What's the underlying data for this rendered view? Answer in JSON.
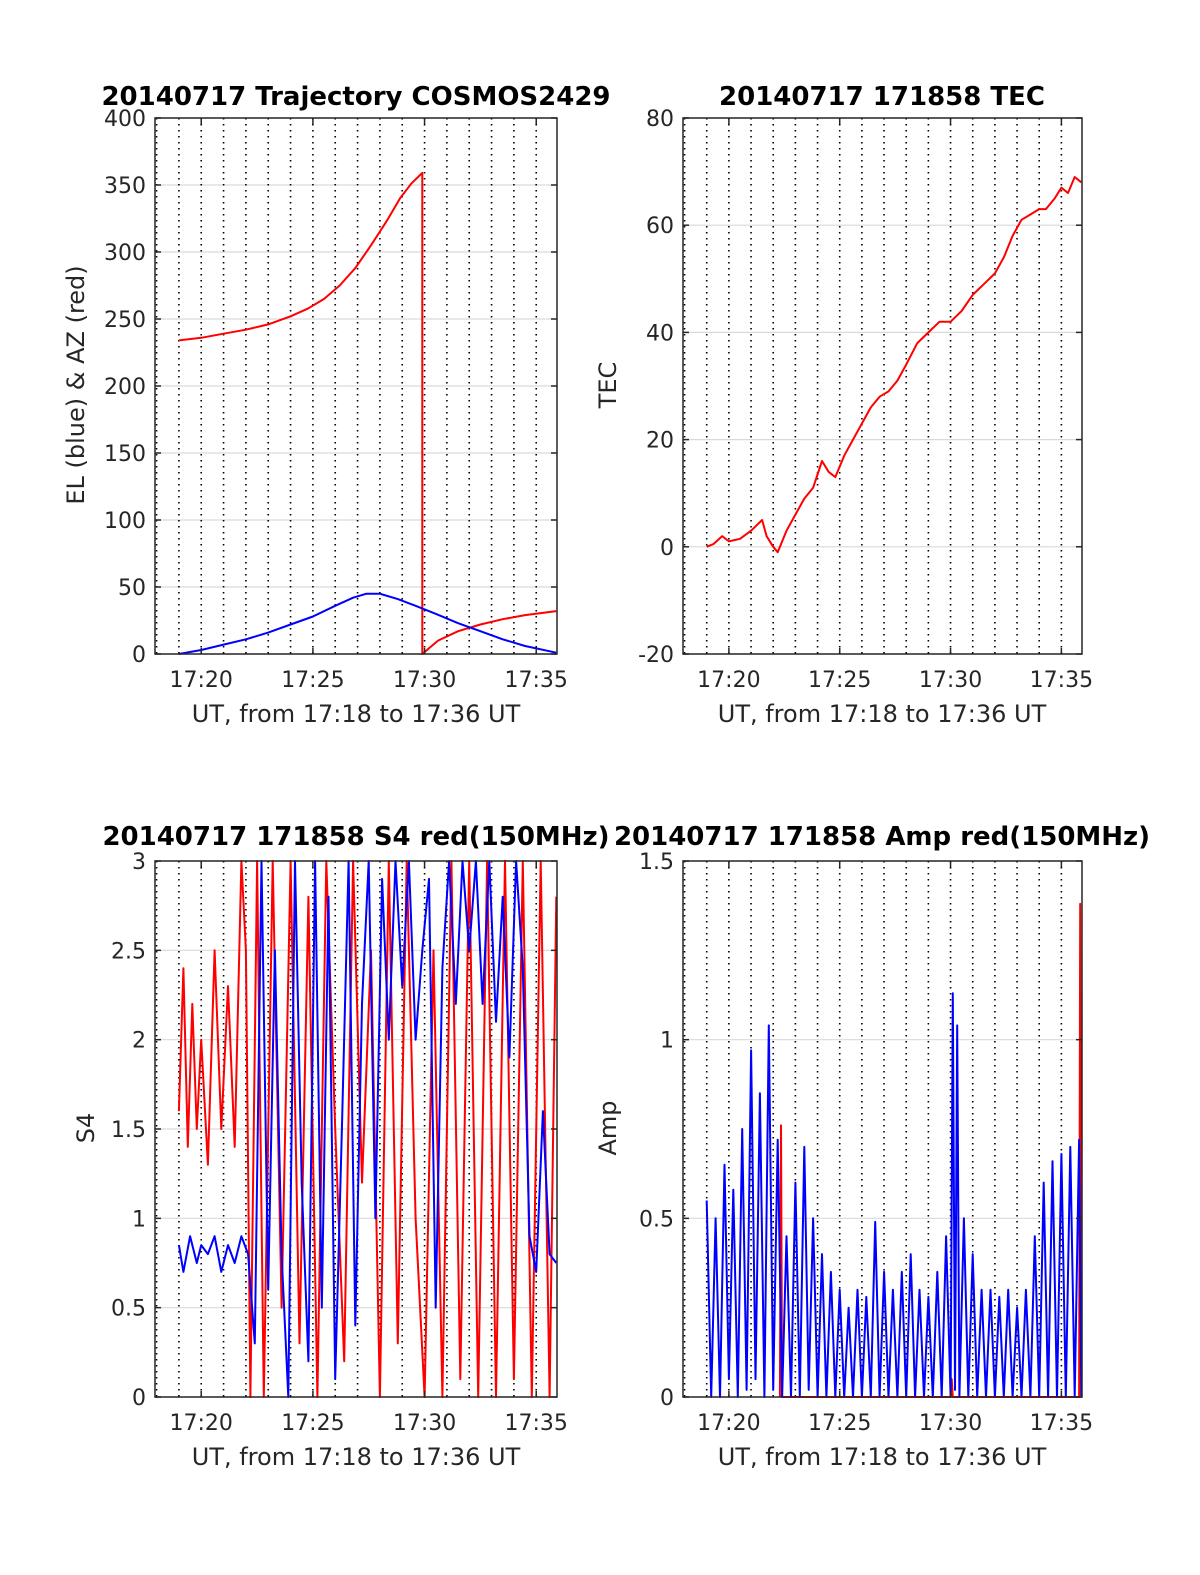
{
  "chart_data": [
    {
      "type": "line",
      "title": "20140717 Trajectory COSMOS2429",
      "xlabel": "UT, from 17:18 to 17:36 UT",
      "ylabel": "EL (blue) & AZ (red)",
      "xlim": [
        17.93,
        35.93
      ],
      "ylim": [
        0,
        400
      ],
      "xticks": [
        20,
        25,
        30,
        35
      ],
      "xtick_labels": [
        "17:20",
        "17:25",
        "17:30",
        "17:35"
      ],
      "yticks": [
        0,
        50,
        100,
        150,
        200,
        250,
        300,
        350,
        400
      ],
      "ytick_labels": [
        "0",
        "50",
        "100",
        "150",
        "200",
        "250",
        "300",
        "350",
        "400"
      ],
      "grid": true,
      "series": [
        {
          "color": "#ff0000",
          "x": [
            19.0,
            20.0,
            21.0,
            22.0,
            23.0,
            24.0,
            24.8,
            25.5,
            26.2,
            26.9,
            27.6,
            28.3,
            28.9,
            29.4,
            29.9,
            29.9,
            30.6,
            31.5,
            32.5,
            33.5,
            34.5,
            35.9
          ],
          "y": [
            234,
            236,
            239,
            242,
            246,
            252,
            258,
            265,
            275,
            288,
            305,
            323,
            340,
            351,
            359,
            0,
            10,
            17,
            22,
            26,
            29,
            32
          ]
        },
        {
          "color": "#0000ff",
          "x": [
            19.0,
            20.0,
            21.0,
            22.0,
            23.0,
            24.0,
            25.0,
            26.0,
            26.8,
            27.4,
            28.0,
            28.8,
            29.6,
            30.5,
            31.5,
            32.5,
            33.5,
            34.5,
            35.9
          ],
          "y": [
            0,
            3,
            7,
            11,
            16,
            22,
            28,
            36,
            42,
            45,
            45,
            41,
            36,
            30,
            23,
            17,
            11,
            6,
            1
          ]
        }
      ]
    },
    {
      "type": "line",
      "title": "20140717 171858 TEC",
      "xlabel": "UT, from 17:18 to 17:36 UT",
      "ylabel": "TEC",
      "xlim": [
        17.93,
        35.93
      ],
      "ylim": [
        -20,
        80
      ],
      "xticks": [
        20,
        25,
        30,
        35
      ],
      "xtick_labels": [
        "17:20",
        "17:25",
        "17:30",
        "17:35"
      ],
      "yticks": [
        -20,
        0,
        20,
        40,
        60,
        80
      ],
      "ytick_labels": [
        "-20",
        "0",
        "20",
        "40",
        "60",
        "80"
      ],
      "grid": true,
      "series": [
        {
          "color": "#ff0000",
          "x": [
            19.0,
            19.3,
            19.7,
            20.0,
            20.5,
            21.0,
            21.5,
            21.7,
            22.0,
            22.2,
            22.6,
            23.0,
            23.4,
            23.8,
            24.2,
            24.5,
            24.8,
            25.2,
            25.6,
            26.0,
            26.4,
            26.8,
            27.2,
            27.6,
            28.0,
            28.5,
            29.0,
            29.5,
            30.0,
            30.5,
            31.0,
            31.5,
            32.0,
            32.4,
            32.8,
            33.2,
            33.6,
            34.0,
            34.3,
            34.7,
            35.0,
            35.3,
            35.6,
            35.9
          ],
          "y": [
            0,
            0.5,
            2,
            1,
            1.5,
            3,
            5,
            2,
            0,
            -1,
            3,
            6,
            9,
            11,
            16,
            14,
            13,
            17,
            20,
            23,
            26,
            28,
            29,
            31,
            34,
            38,
            40,
            42,
            42,
            44,
            47,
            49,
            51,
            54,
            58,
            61,
            62,
            63,
            63,
            65,
            67,
            66,
            69,
            68
          ]
        }
      ]
    },
    {
      "type": "line",
      "title": "20140717 171858 S4 red(150MHz)",
      "xlabel": "UT, from 17:18 to 17:36 UT",
      "ylabel": "S4",
      "xlim": [
        17.93,
        35.93
      ],
      "ylim": [
        0,
        3
      ],
      "xticks": [
        20,
        25,
        30,
        35
      ],
      "xtick_labels": [
        "17:20",
        "17:25",
        "17:30",
        "17:35"
      ],
      "yticks": [
        0,
        0.5,
        1,
        1.5,
        2,
        2.5,
        3
      ],
      "ytick_labels": [
        "0",
        "0.5",
        "1",
        "1.5",
        "2",
        "2.5",
        "3"
      ],
      "grid": true,
      "series": [
        {
          "color": "#ff0000",
          "x": [
            19.0,
            19.2,
            19.4,
            19.6,
            19.8,
            20.0,
            20.3,
            20.6,
            20.9,
            21.2,
            21.5,
            21.8,
            22.0,
            22.2,
            22.5,
            22.8,
            23.2,
            23.6,
            24.0,
            24.4,
            24.8,
            25.2,
            25.6,
            26.0,
            26.4,
            26.8,
            27.2,
            27.6,
            28.0,
            28.4,
            28.8,
            29.2,
            29.6,
            30.0,
            30.4,
            30.8,
            31.2,
            31.6,
            32.0,
            32.4,
            32.8,
            33.2,
            33.6,
            34.0,
            34.4,
            34.8,
            35.2,
            35.6,
            35.9
          ],
          "y": [
            1.6,
            2.4,
            1.4,
            2.2,
            1.5,
            2.0,
            1.3,
            2.5,
            1.5,
            2.3,
            1.4,
            3.0,
            2.5,
            0,
            3.0,
            0,
            3.0,
            0.5,
            3.0,
            0.3,
            2.8,
            0,
            3.0,
            1.5,
            0.2,
            3.0,
            1.2,
            2.5,
            0,
            3.0,
            0.3,
            3.0,
            1.0,
            0,
            2.5,
            0,
            3.0,
            0.1,
            3.0,
            0,
            3.0,
            0,
            3.0,
            0.1,
            3.0,
            0,
            3.0,
            0,
            2.8
          ]
        },
        {
          "color": "#0000ff",
          "x": [
            19.0,
            19.2,
            19.5,
            19.8,
            20.0,
            20.3,
            20.6,
            20.9,
            21.2,
            21.5,
            21.8,
            22.1,
            22.4,
            22.7,
            23.0,
            23.3,
            23.6,
            23.9,
            24.2,
            24.5,
            24.8,
            25.1,
            25.4,
            25.7,
            26.0,
            26.3,
            26.6,
            26.9,
            27.2,
            27.5,
            27.8,
            28.1,
            28.4,
            28.7,
            29.0,
            29.3,
            29.6,
            29.9,
            30.2,
            30.5,
            30.8,
            31.1,
            31.4,
            31.7,
            32.0,
            32.3,
            32.6,
            32.9,
            33.2,
            33.5,
            33.8,
            34.1,
            34.4,
            34.7,
            35.0,
            35.3,
            35.6,
            35.9
          ],
          "y": [
            0.85,
            0.7,
            0.9,
            0.75,
            0.85,
            0.8,
            0.9,
            0.7,
            0.85,
            0.75,
            0.9,
            0.8,
            0.3,
            3.0,
            0.6,
            2.5,
            0.8,
            0.0,
            3.0,
            1.2,
            0.2,
            3.0,
            0.5,
            2.8,
            0.1,
            1.5,
            3.0,
            0.4,
            2.2,
            3.0,
            1.0,
            2.9,
            2.0,
            3.0,
            2.3,
            3.0,
            2.0,
            2.5,
            2.9,
            0.5,
            2.4,
            3.0,
            2.2,
            3.0,
            2.5,
            3.0,
            2.2,
            3.0,
            2.1,
            2.8,
            1.9,
            3.0,
            2.4,
            0.9,
            0.7,
            1.6,
            0.8,
            0.75
          ]
        }
      ]
    },
    {
      "type": "line",
      "title": "20140717 171858 Amp red(150MHz)",
      "xlabel": "UT, from 17:18 to 17:36 UT",
      "ylabel": "Amp",
      "xlim": [
        17.93,
        35.93
      ],
      "ylim": [
        0,
        1.5
      ],
      "xticks": [
        20,
        25,
        30,
        35
      ],
      "xtick_labels": [
        "17:20",
        "17:25",
        "17:30",
        "17:35"
      ],
      "yticks": [
        0,
        0.5,
        1,
        1.5
      ],
      "ytick_labels": [
        "0",
        "0.5",
        "1",
        "1.5"
      ],
      "grid": true,
      "series": [
        {
          "color": "#ff0000",
          "x": [
            22.3,
            22.35,
            22.4,
            30.0,
            30.05,
            30.1,
            35.8,
            35.85,
            35.9
          ],
          "y": [
            0,
            0.76,
            0,
            0,
            0.05,
            0,
            0,
            1.38,
            0
          ]
        },
        {
          "color": "#0000ff",
          "x": [
            19.0,
            19.2,
            19.4,
            19.6,
            19.8,
            20.0,
            20.2,
            20.4,
            20.6,
            20.8,
            21.0,
            21.2,
            21.4,
            21.6,
            21.8,
            22.0,
            22.2,
            22.4,
            22.6,
            22.8,
            23.0,
            23.2,
            23.4,
            23.6,
            23.8,
            24.0,
            24.2,
            24.4,
            24.6,
            24.8,
            25.0,
            25.2,
            25.4,
            25.6,
            25.8,
            26.0,
            26.2,
            26.4,
            26.6,
            26.8,
            27.0,
            27.2,
            27.4,
            27.6,
            27.8,
            28.0,
            28.2,
            28.4,
            28.6,
            28.8,
            29.0,
            29.2,
            29.4,
            29.6,
            29.8,
            30.0,
            30.1,
            30.2,
            30.3,
            30.4,
            30.6,
            30.8,
            31.0,
            31.2,
            31.4,
            31.6,
            31.8,
            32.0,
            32.2,
            32.4,
            32.6,
            32.8,
            33.0,
            33.2,
            33.4,
            33.6,
            33.8,
            34.0,
            34.2,
            34.4,
            34.6,
            34.8,
            35.0,
            35.2,
            35.4,
            35.6,
            35.8,
            35.9
          ],
          "y": [
            0.55,
            0.0,
            0.5,
            0.0,
            0.65,
            0.05,
            0.58,
            0.0,
            0.75,
            0.02,
            0.97,
            0.05,
            0.85,
            0.0,
            1.04,
            0.02,
            0.72,
            0.0,
            0.45,
            0.0,
            0.6,
            0.0,
            0.7,
            0.02,
            0.5,
            0.0,
            0.4,
            0.0,
            0.35,
            0.0,
            0.3,
            0.0,
            0.25,
            0.0,
            0.3,
            0.0,
            0.28,
            0.0,
            0.49,
            0.0,
            0.35,
            0.0,
            0.3,
            0.0,
            0.35,
            0.0,
            0.4,
            0.0,
            0.3,
            0.0,
            0.28,
            0.0,
            0.35,
            0.0,
            0.45,
            0.0,
            1.13,
            0.02,
            1.04,
            0.0,
            0.5,
            0.0,
            0.4,
            0.0,
            0.3,
            0.0,
            0.3,
            0.0,
            0.28,
            0.0,
            0.3,
            0.0,
            0.25,
            0.0,
            0.3,
            0.0,
            0.45,
            0.0,
            0.6,
            0.0,
            0.66,
            0.0,
            0.68,
            0.0,
            0.7,
            0.0,
            0.72,
            0.0
          ]
        }
      ]
    }
  ]
}
